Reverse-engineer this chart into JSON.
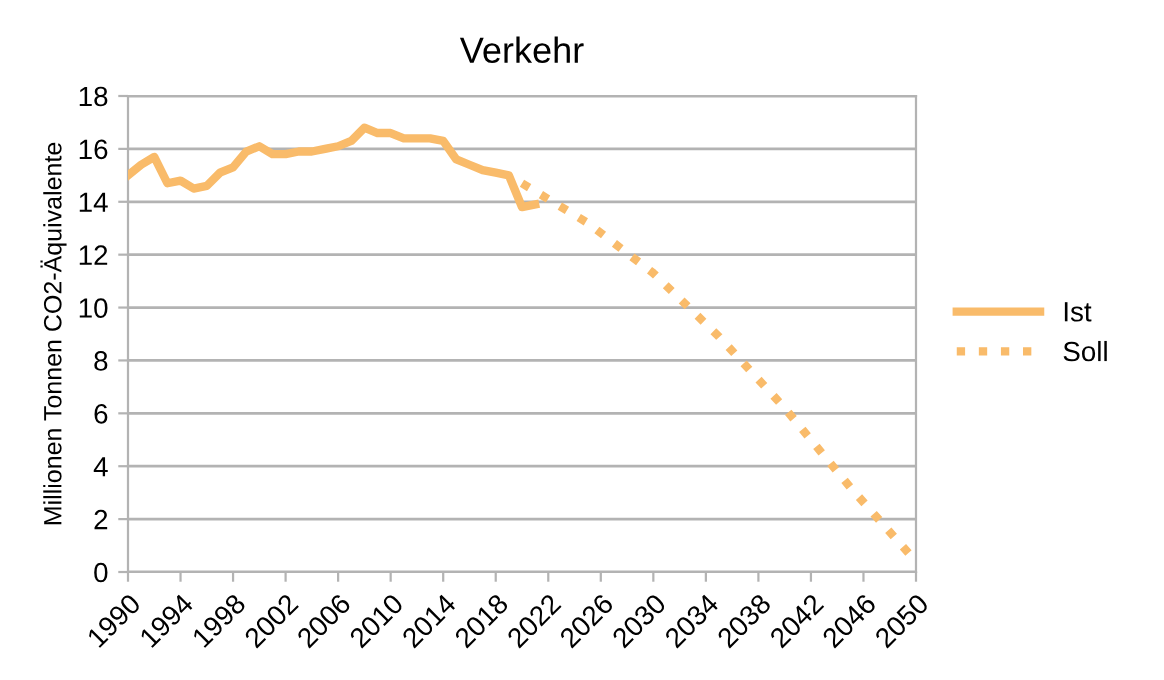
{
  "chart_data": {
    "type": "line",
    "title": "Verkehr",
    "ylabel": "Millionen Tonnen CO2-Äquivalente",
    "xlim": [
      1990,
      2050
    ],
    "xticks": [
      1990,
      1994,
      1998,
      2002,
      2006,
      2010,
      2014,
      2018,
      2022,
      2026,
      2030,
      2034,
      2038,
      2042,
      2046,
      2050
    ],
    "ylim": [
      0,
      18
    ],
    "yticks": [
      0,
      2,
      4,
      6,
      8,
      10,
      12,
      14,
      16,
      18
    ],
    "grid": "y",
    "legend": "right",
    "series": [
      {
        "name": "Ist",
        "color": "#f9bb6a",
        "line_style": "solid",
        "x": [
          1990,
          1991,
          1992,
          1993,
          1994,
          1995,
          1996,
          1997,
          1998,
          1999,
          2000,
          2001,
          2002,
          2003,
          2004,
          2005,
          2006,
          2007,
          2008,
          2009,
          2010,
          2011,
          2012,
          2013,
          2014,
          2015,
          2016,
          2017,
          2018,
          2019,
          2020,
          2021
        ],
        "values": [
          15.0,
          15.4,
          15.7,
          14.7,
          14.8,
          14.5,
          14.6,
          15.1,
          15.3,
          15.9,
          16.1,
          15.8,
          15.8,
          15.9,
          15.9,
          16.0,
          16.1,
          16.3,
          16.8,
          16.6,
          16.6,
          16.4,
          16.4,
          16.4,
          16.3,
          15.6,
          15.4,
          15.2,
          15.1,
          15.0,
          13.8,
          13.9
        ]
      },
      {
        "name": "Soll",
        "color": "#f9bb6a",
        "line_style": "dotted",
        "x": [
          2020,
          2025,
          2030,
          2035,
          2040,
          2045,
          2050
        ],
        "values": [
          14.7,
          13.2,
          11.3,
          8.9,
          6.2,
          3.2,
          0.4
        ]
      }
    ]
  }
}
